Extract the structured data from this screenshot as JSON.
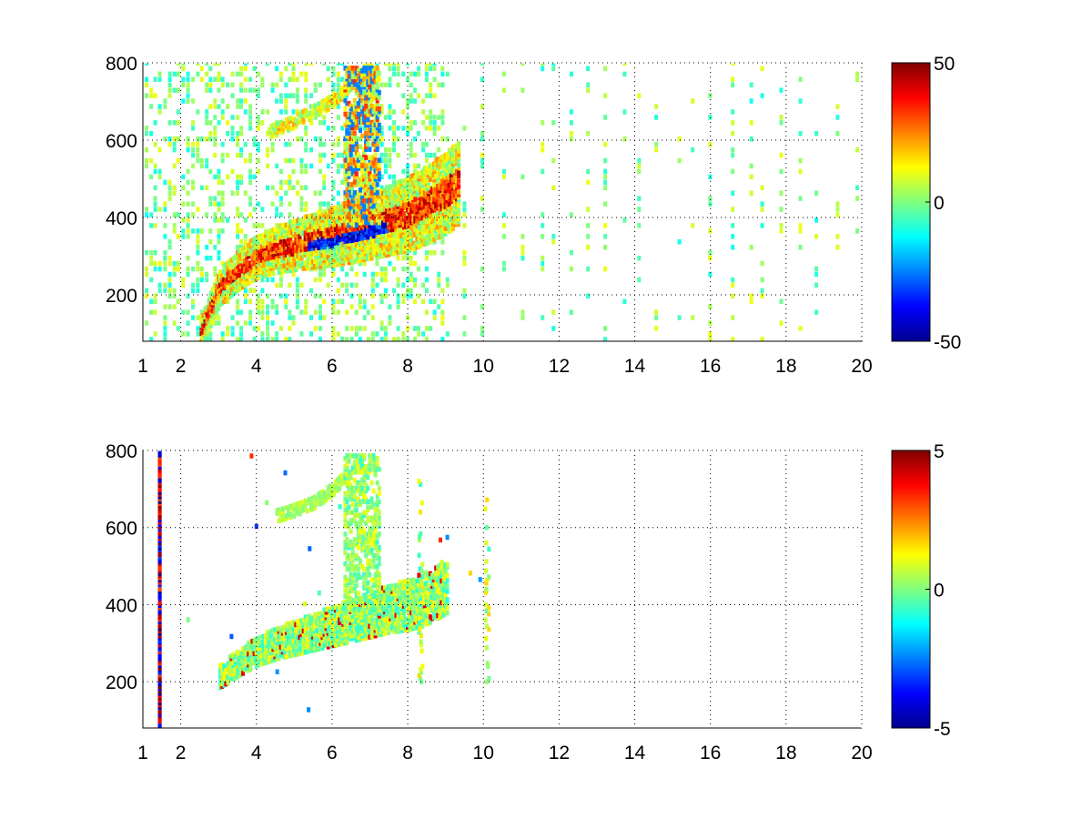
{
  "chart_data": [
    {
      "type": "heatmap",
      "title": "",
      "xlabel": "",
      "ylabel": "",
      "xlim": [
        1,
        20
      ],
      "ylim": [
        80,
        800
      ],
      "xticks": [
        1,
        2,
        4,
        6,
        8,
        10,
        12,
        14,
        16,
        18,
        20
      ],
      "yticks": [
        200,
        400,
        600,
        800
      ],
      "grid": true,
      "colormap": "jet",
      "colorbar": {
        "range": [
          -50,
          50
        ],
        "ticks": [
          50,
          0,
          -50
        ]
      },
      "features": [
        {
          "name": "main ridge",
          "x": [
            2.5,
            3.0,
            3.5,
            4.0,
            4.5,
            5.0,
            5.5,
            6.0,
            6.5,
            7.0,
            7.5,
            8.0,
            8.5,
            9.0,
            9.3
          ],
          "y": [
            105,
            220,
            265,
            300,
            318,
            330,
            342,
            352,
            365,
            380,
            395,
            410,
            435,
            465,
            490
          ]
        },
        {
          "name": "upper branch",
          "x": [
            4.3,
            4.8,
            5.3,
            5.8,
            6.2,
            6.6,
            7.0
          ],
          "y": [
            620,
            640,
            665,
            690,
            720,
            760,
            790
          ]
        },
        {
          "name": "vertical band",
          "x": [
            6.4,
            6.5,
            6.6,
            6.7,
            6.8
          ],
          "y": [
            350,
            450,
            550,
            650,
            760
          ]
        },
        {
          "name": "strong negative core",
          "x": [
            5.5,
            6.0,
            6.5,
            7.0
          ],
          "y": [
            330,
            345,
            360,
            380
          ],
          "value": -45
        },
        {
          "name": "strong positive core",
          "x": [
            3.2,
            4.0,
            4.6,
            5.2
          ],
          "y": [
            240,
            290,
            310,
            325
          ],
          "value": 40
        }
      ]
    },
    {
      "type": "heatmap",
      "title": "",
      "xlabel": "",
      "ylabel": "",
      "xlim": [
        1,
        20
      ],
      "ylim": [
        80,
        800
      ],
      "xticks": [
        1,
        2,
        4,
        6,
        8,
        10,
        12,
        14,
        16,
        18,
        20
      ],
      "yticks": [
        200,
        400,
        600,
        800
      ],
      "grid": true,
      "colormap": "jet",
      "colorbar": {
        "range": [
          -5,
          5
        ],
        "ticks": [
          5,
          0,
          -5
        ]
      },
      "features": [
        {
          "name": "main ridge",
          "x": [
            3.0,
            3.5,
            4.0,
            4.5,
            5.0,
            5.5,
            6.0,
            6.5,
            7.0,
            7.5,
            8.0,
            8.5,
            9.0
          ],
          "y": [
            215,
            250,
            280,
            300,
            315,
            330,
            345,
            360,
            375,
            390,
            400,
            420,
            450
          ]
        },
        {
          "name": "upper branch",
          "x": [
            4.5,
            5.0,
            5.5,
            6.0,
            6.4,
            6.8
          ],
          "y": [
            630,
            645,
            665,
            700,
            740,
            780
          ]
        },
        {
          "name": "edge column",
          "x": [
            1.4
          ],
          "y": [
            80,
            800
          ]
        }
      ]
    }
  ]
}
